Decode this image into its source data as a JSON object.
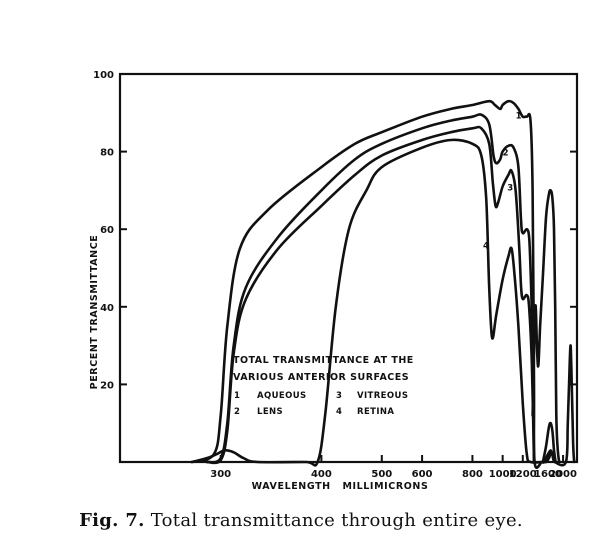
{
  "chart_data": {
    "type": "line",
    "title": "",
    "xlabel": "WAVELENGTH   MILLIMICRONS",
    "ylabel": "PERCENT TRANSMITTANCE",
    "x_scale": "reciprocal",
    "xlim": [
      240,
      2600
    ],
    "ylim": [
      0,
      100
    ],
    "grid": false,
    "yticks": [
      0,
      20,
      40,
      60,
      80,
      100
    ],
    "ytick_labels": [
      "",
      "20",
      "40",
      "60",
      "80",
      "100"
    ],
    "xticks": [
      {
        "label": "300",
        "value": 300
      },
      {
        "label": "400",
        "value": 400
      },
      {
        "label": "500",
        "value": 500
      },
      {
        "label": "600",
        "value": 600
      },
      {
        "label": "800",
        "value": 800
      },
      {
        "label": "1000",
        "value": 1000
      },
      {
        "label": "1200",
        "value": 1200
      },
      {
        "label": "1600",
        "value": 1600
      },
      {
        "label": "2000",
        "value": 2000
      }
    ],
    "legend": {
      "title_lines": [
        "TOTAL TRANSMITTANCE AT THE",
        "VARIOUS ANTERIOR SURFACES"
      ],
      "entries": [
        {
          "number": "1",
          "name": "AQUEOUS"
        },
        {
          "number": "2",
          "name": "LENS"
        },
        {
          "number": "3",
          "name": "VITREOUS"
        },
        {
          "number": "4",
          "name": "RETINA"
        }
      ]
    },
    "series": [
      {
        "label": "1",
        "points": [
          [
            280,
            0
          ],
          [
            295,
            2
          ],
          [
            300,
            12
          ],
          [
            305,
            35
          ],
          [
            315,
            55
          ],
          [
            340,
            65
          ],
          [
            400,
            76
          ],
          [
            450,
            82
          ],
          [
            500,
            85
          ],
          [
            600,
            89
          ],
          [
            700,
            91
          ],
          [
            800,
            92
          ],
          [
            900,
            93
          ],
          [
            940,
            92
          ],
          [
            980,
            91
          ],
          [
            1000,
            92
          ],
          [
            1050,
            93
          ],
          [
            1100,
            92.5
          ],
          [
            1150,
            91
          ],
          [
            1200,
            89
          ],
          [
            1250,
            89
          ],
          [
            1300,
            88
          ],
          [
            1330,
            70
          ],
          [
            1350,
            20
          ],
          [
            1360,
            0
          ],
          [
            1480,
            0
          ],
          [
            1520,
            0
          ],
          [
            1600,
            2
          ],
          [
            1660,
            3
          ],
          [
            1700,
            2
          ],
          [
            1760,
            0
          ],
          [
            2100,
            0
          ],
          [
            2170,
            10
          ],
          [
            2230,
            22
          ],
          [
            2280,
            30
          ],
          [
            2320,
            24
          ],
          [
            2400,
            5
          ],
          [
            2450,
            0
          ]
        ]
      },
      {
        "label": "2",
        "points": [
          [
            290,
            0
          ],
          [
            300,
            1
          ],
          [
            305,
            10
          ],
          [
            310,
            30
          ],
          [
            320,
            45
          ],
          [
            350,
            58
          ],
          [
            400,
            70
          ],
          [
            450,
            78
          ],
          [
            500,
            82
          ],
          [
            600,
            86
          ],
          [
            700,
            88
          ],
          [
            800,
            89
          ],
          [
            850,
            89.5
          ],
          [
            900,
            87
          ],
          [
            930,
            79
          ],
          [
            950,
            77
          ],
          [
            980,
            78
          ],
          [
            1000,
            80
          ],
          [
            1050,
            81.5
          ],
          [
            1100,
            81
          ],
          [
            1150,
            76
          ],
          [
            1180,
            62
          ],
          [
            1200,
            59
          ],
          [
            1250,
            60
          ],
          [
            1280,
            58
          ],
          [
            1300,
            50
          ],
          [
            1330,
            30
          ],
          [
            1350,
            0
          ]
        ]
      },
      {
        "label": "3",
        "points": [
          [
            290,
            0
          ],
          [
            300,
            0.5
          ],
          [
            305,
            8
          ],
          [
            310,
            28
          ],
          [
            320,
            42
          ],
          [
            350,
            55
          ],
          [
            400,
            66
          ],
          [
            450,
            74
          ],
          [
            500,
            79
          ],
          [
            600,
            83
          ],
          [
            700,
            85
          ],
          [
            800,
            86
          ],
          [
            850,
            86
          ],
          [
            900,
            82
          ],
          [
            925,
            72
          ],
          [
            945,
            66
          ],
          [
            965,
            67
          ],
          [
            1000,
            71
          ],
          [
            1050,
            74
          ],
          [
            1080,
            75
          ],
          [
            1120,
            70
          ],
          [
            1160,
            55
          ],
          [
            1180,
            45
          ],
          [
            1200,
            42
          ],
          [
            1250,
            43
          ],
          [
            1280,
            40
          ],
          [
            1320,
            25
          ],
          [
            1350,
            0
          ]
        ]
      },
      {
        "label": "4",
        "points": [
          [
            280,
            0
          ],
          [
            290,
            1
          ],
          [
            297,
            2
          ],
          [
            303,
            3
          ],
          [
            310,
            2.5
          ],
          [
            318,
            1
          ],
          [
            330,
            0
          ],
          [
            380,
            0
          ],
          [
            395,
            0
          ],
          [
            405,
            12
          ],
          [
            420,
            40
          ],
          [
            440,
            60
          ],
          [
            470,
            70
          ],
          [
            500,
            76
          ],
          [
            600,
            81
          ],
          [
            700,
            83
          ],
          [
            800,
            82
          ],
          [
            850,
            79
          ],
          [
            880,
            68
          ],
          [
            900,
            45
          ],
          [
            920,
            32
          ],
          [
            950,
            38
          ],
          [
            1000,
            47
          ],
          [
            1050,
            53
          ],
          [
            1080,
            55
          ],
          [
            1110,
            48
          ],
          [
            1150,
            35
          ],
          [
            1200,
            15
          ],
          [
            1250,
            2
          ],
          [
            1300,
            0
          ],
          [
            1500,
            0
          ],
          [
            1560,
            0
          ],
          [
            1620,
            1
          ],
          [
            1680,
            2.5
          ],
          [
            1720,
            1
          ],
          [
            1760,
            0
          ]
        ]
      },
      {
        "label": "",
        "points": [
          [
            1330,
            12
          ],
          [
            1370,
            40
          ],
          [
            1400,
            28
          ],
          [
            1420,
            25
          ],
          [
            1450,
            35
          ],
          [
            1500,
            48
          ],
          [
            1560,
            63
          ],
          [
            1620,
            69
          ],
          [
            1660,
            70
          ],
          [
            1700,
            68
          ],
          [
            1740,
            60
          ],
          [
            1770,
            40
          ],
          [
            1800,
            12
          ],
          [
            1840,
            3
          ],
          [
            1880,
            0
          ]
        ]
      },
      {
        "label": "",
        "points": [
          [
            1500,
            0
          ],
          [
            1560,
            4
          ],
          [
            1620,
            9
          ],
          [
            1660,
            10
          ],
          [
            1700,
            8
          ],
          [
            1740,
            3
          ],
          [
            1780,
            0
          ]
        ]
      }
    ]
  },
  "caption": {
    "fig": "Fig. 7.",
    "text": "Total transmittance through entire eye."
  }
}
